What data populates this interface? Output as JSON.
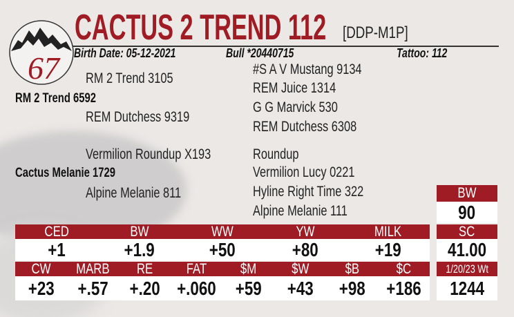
{
  "lot_number": "67",
  "title": "CACTUS 2 TREND 112",
  "code": "[DDP-M1P]",
  "birth_date": "Birth Date: 05-12-2021",
  "registration": "Bull *20440715",
  "tattoo": "Tattoo: 112",
  "pedigree": {
    "sire": "RM 2 Trend 6592",
    "sire_sire": "RM 2 Trend 3105",
    "sire_dam": "REM Dutchess 9319",
    "sire_sire_sire": "#S A V Mustang 9134",
    "sire_sire_dam": "REM Juice 1314",
    "sire_dam_sire": "G G Marvick 530",
    "sire_dam_dam": "REM Dutchess 6308",
    "dam": "Cactus Melanie 1729",
    "dam_sire": "Vermilion Roundup X193",
    "dam_dam": "Alpine Melanie 811",
    "dam_sire_sire": "Roundup",
    "dam_sire_dam": "Vermilion Lucy 0221",
    "dam_dam_sire": "Hyline Right Time 322",
    "dam_dam_dam": "Alpine Melanie 111"
  },
  "epd_row1": {
    "headers": [
      "CED",
      "BW",
      "WW",
      "YW",
      "MILK"
    ],
    "values": [
      "+1",
      "+1.9",
      "+50",
      "+80",
      "+19"
    ]
  },
  "epd_row2": {
    "headers": [
      "CW",
      "MARB",
      "RE",
      "FAT",
      "$M",
      "$W",
      "$B",
      "$C"
    ],
    "values": [
      "+23",
      "+.57",
      "+.20",
      "+.060",
      "+59",
      "+43",
      "+98",
      "+186"
    ]
  },
  "side": {
    "bw_label": "BW",
    "bw_value": "90",
    "sc_label": "SC",
    "sc_value": "41.00",
    "wt_label": "1/20/23 Wt",
    "wt_value": "1244"
  },
  "colors": {
    "accent": "#a01c24"
  }
}
